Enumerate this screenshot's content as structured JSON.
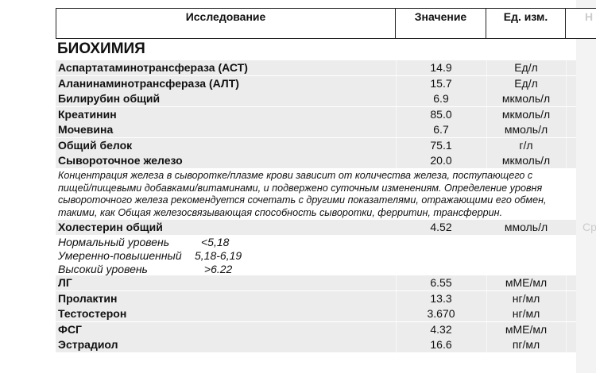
{
  "header": {
    "col_name": "Исследование",
    "col_value": "Значение",
    "col_unit": "Ед. изм.",
    "col_next": "Н"
  },
  "section": "БИОХИМИЯ",
  "rows_a": [
    {
      "name": "Аспартатаминотрансфераза (АСТ)",
      "value": "14.9",
      "unit": "Ед/л"
    },
    {
      "name": "Аланинаминотрансфераза (АЛТ)",
      "value": "15.7",
      "unit": "Ед/л"
    },
    {
      "name": "Билирубин общий",
      "value": "6.9",
      "unit": "мкмоль/л"
    },
    {
      "name": "Креатинин",
      "value": "85.0",
      "unit": "мкмоль/л"
    },
    {
      "name": "Мочевина",
      "value": "6.7",
      "unit": "ммоль/л"
    },
    {
      "name": "Общий белок",
      "value": "75.1",
      "unit": "г/л"
    },
    {
      "name": "Сывороточное железо",
      "value": "20.0",
      "unit": "мкмоль/л"
    }
  ],
  "iron_note": [
    "Концентрация железа в сыворотке/плазме крови зависит от количества железа, поступающего с",
    "пищей/пищевыми добавками/витаминами, и подвержено суточным изменениям. Определение уровня",
    "сывороточного железа рекомендуется сочетать с другими показателями, отражающими его обмен,",
    "такими, как Общая железосвязывающая способность сыворотки, ферритин, трансферрин."
  ],
  "cholesterol": {
    "name": "Холестерин общий",
    "value": "4.52",
    "unit": "ммоль/л",
    "next": "Ср"
  },
  "levels": [
    {
      "label": "Нормальный уровень",
      "value": "<5,18"
    },
    {
      "label": "Умеренно-повышенный",
      "value": "5,18-6,19"
    },
    {
      "label": "Высокий уровень",
      "value": " >6.22"
    }
  ],
  "rows_b": [
    {
      "name": "ЛГ",
      "value": "6.55",
      "unit": "мМЕ/мл"
    },
    {
      "name": "Пролактин",
      "value": "13.3",
      "unit": "нг/мл"
    },
    {
      "name": "Тестостерон",
      "value": "3.670",
      "unit": "нг/мл"
    },
    {
      "name": "ФСГ",
      "value": "4.32",
      "unit": "мМЕ/мл"
    },
    {
      "name": "Эстрадиол",
      "value": "16.6",
      "unit": "пг/мл"
    }
  ]
}
